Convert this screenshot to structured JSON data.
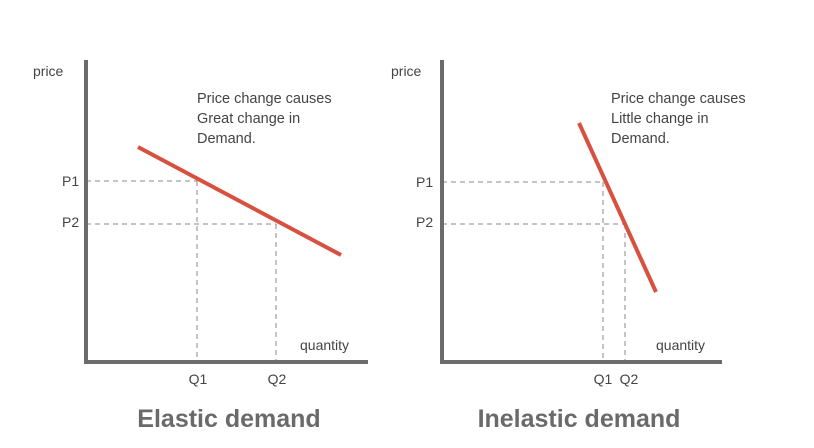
{
  "colors": {
    "axis": "#6b6b6b",
    "curve": "#d8503f",
    "text": "#444444",
    "title": "#6a6a6a"
  },
  "panels": [
    {
      "title": "Elastic demand",
      "y_axis_label": "price",
      "x_axis_label": "quantity",
      "note_lines": [
        "Price change causes",
        "Great change in",
        "Demand."
      ],
      "price_ticks": [
        "P1",
        "P2"
      ],
      "quantity_ticks": [
        "Q1",
        "Q2"
      ]
    },
    {
      "title": "Inelastic demand",
      "y_axis_label": "price",
      "x_axis_label": "quantity",
      "note_lines": [
        "Price change causes",
        "Little change in",
        "Demand."
      ],
      "price_ticks": [
        "P1",
        "P2"
      ],
      "quantity_ticks": [
        "Q1",
        "Q2"
      ]
    }
  ]
}
